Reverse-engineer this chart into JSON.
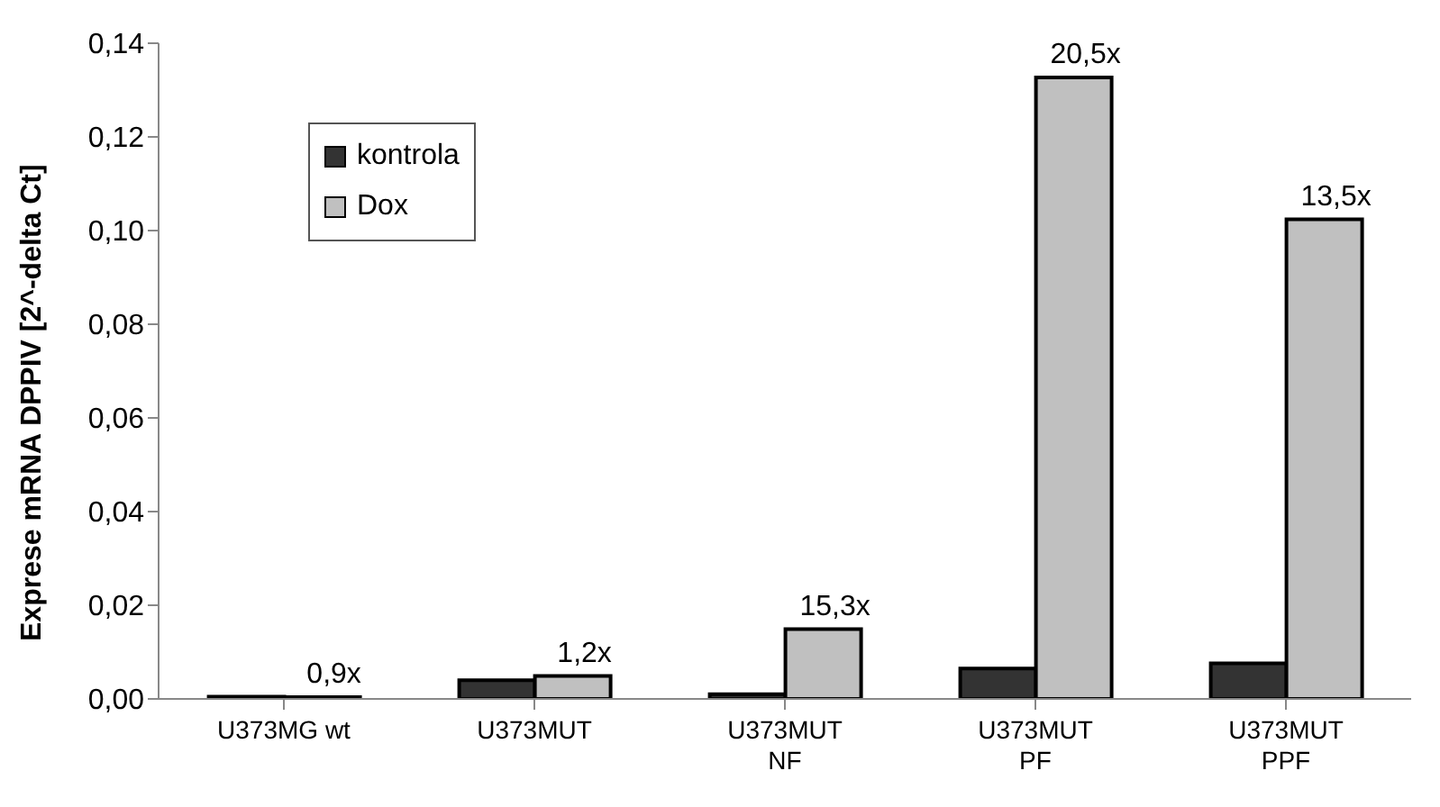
{
  "chart_data": {
    "type": "bar",
    "ylabel": "Exprese mRNA DPPIV [2^-delta Ct]",
    "categories": [
      "U373MG wt",
      "U373MUT",
      "U373MUT\nNF",
      "U373MUT\nPF",
      "U373MUT\nPPF"
    ],
    "series": [
      {
        "name": "kontrola",
        "color": "#333333",
        "values": [
          0.0005,
          0.004,
          0.001,
          0.0065,
          0.0076
        ]
      },
      {
        "name": "Dox",
        "color": "#c0c0c0",
        "values": [
          0.0004,
          0.0049,
          0.0149,
          0.1327,
          0.1024
        ]
      }
    ],
    "annotations": [
      {
        "text": "0,9x",
        "x": "U373MG wt",
        "y": 0.0004
      },
      {
        "text": "1,2x",
        "x": "U373MUT",
        "y": 0.0049
      },
      {
        "text": "15,3x",
        "x": "U373MUT\nNF",
        "y": 0.0149
      },
      {
        "text": "20,5x",
        "x": "U373MUT\nPF",
        "y": 0.1327
      },
      {
        "text": "13,5x",
        "x": "U373MUT\nPPF",
        "y": 0.1024
      }
    ],
    "ylim": [
      0,
      0.14
    ],
    "yticks": [
      {
        "value": 0,
        "label": "0,00"
      },
      {
        "value": 0.02,
        "label": "0,02"
      },
      {
        "value": 0.04,
        "label": "0,04"
      },
      {
        "value": 0.06,
        "label": "0,06"
      },
      {
        "value": 0.08,
        "label": "0,08"
      },
      {
        "value": 0.1,
        "label": "0,10"
      },
      {
        "value": 0.12,
        "label": "0,12"
      },
      {
        "value": 0.14,
        "label": "0,14"
      }
    ],
    "grid": false,
    "legend": "top left"
  }
}
